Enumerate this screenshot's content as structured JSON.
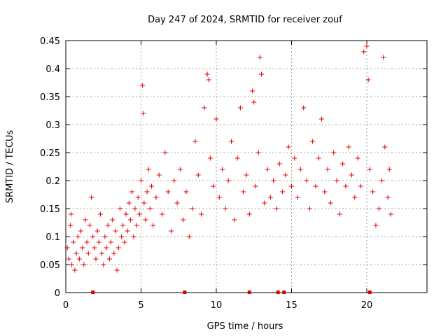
{
  "chart_data": {
    "type": "scatter",
    "title": "Day 247 of 2024, SRMTID for receiver zouf",
    "xlabel": "GPS time / hours",
    "ylabel": "SRMTID / TECUs",
    "xlim": [
      0,
      24
    ],
    "ylim": [
      0,
      0.45
    ],
    "x_ticks": [
      "0",
      "5",
      "10",
      "15",
      "20"
    ],
    "x_tick_values": [
      0,
      5,
      10,
      15,
      20
    ],
    "y_ticks": [
      "0",
      "0.05",
      "0.1",
      "0.15",
      "0.2",
      "0.25",
      "0.3",
      "0.35",
      "0.4",
      "0.45"
    ],
    "y_tick_values": [
      0,
      0.05,
      0.1,
      0.15,
      0.2,
      0.25,
      0.3,
      0.35,
      0.4,
      0.45
    ],
    "grid": true,
    "marker": "+",
    "color": "#e00000",
    "zero_markers_x": [
      1.8,
      7.9,
      12.2,
      14.1,
      14.5,
      20.2
    ],
    "points": [
      [
        0.1,
        0.08
      ],
      [
        0.2,
        0.06
      ],
      [
        0.3,
        0.12
      ],
      [
        0.35,
        0.14
      ],
      [
        0.4,
        0.05
      ],
      [
        0.5,
        0.09
      ],
      [
        0.6,
        0.04
      ],
      [
        0.7,
        0.07
      ],
      [
        0.8,
        0.1
      ],
      [
        0.9,
        0.06
      ],
      [
        1.0,
        0.11
      ],
      [
        1.1,
        0.08
      ],
      [
        1.2,
        0.05
      ],
      [
        1.3,
        0.13
      ],
      [
        1.4,
        0.09
      ],
      [
        1.5,
        0.07
      ],
      [
        1.6,
        0.12
      ],
      [
        1.7,
        0.17
      ],
      [
        1.8,
        0.1
      ],
      [
        1.9,
        0.08
      ],
      [
        2.0,
        0.06
      ],
      [
        2.1,
        0.11
      ],
      [
        2.2,
        0.09
      ],
      [
        2.3,
        0.14
      ],
      [
        2.4,
        0.07
      ],
      [
        2.5,
        0.05
      ],
      [
        2.6,
        0.1
      ],
      [
        2.7,
        0.08
      ],
      [
        2.8,
        0.12
      ],
      [
        2.9,
        0.06
      ],
      [
        3.0,
        0.09
      ],
      [
        3.1,
        0.13
      ],
      [
        3.2,
        0.07
      ],
      [
        3.3,
        0.11
      ],
      [
        3.4,
        0.04
      ],
      [
        3.5,
        0.08
      ],
      [
        3.6,
        0.15
      ],
      [
        3.7,
        0.1
      ],
      [
        3.8,
        0.12
      ],
      [
        3.9,
        0.09
      ],
      [
        4.0,
        0.14
      ],
      [
        4.1,
        0.11
      ],
      [
        4.2,
        0.16
      ],
      [
        4.3,
        0.13
      ],
      [
        4.4,
        0.18
      ],
      [
        4.5,
        0.1
      ],
      [
        4.6,
        0.15
      ],
      [
        4.7,
        0.12
      ],
      [
        4.8,
        0.17
      ],
      [
        4.9,
        0.14
      ],
      [
        5.0,
        0.2
      ],
      [
        5.1,
        0.37
      ],
      [
        5.15,
        0.32
      ],
      [
        5.2,
        0.16
      ],
      [
        5.3,
        0.13
      ],
      [
        5.4,
        0.18
      ],
      [
        5.5,
        0.22
      ],
      [
        5.6,
        0.15
      ],
      [
        5.7,
        0.19
      ],
      [
        5.8,
        0.12
      ],
      [
        6.0,
        0.17
      ],
      [
        6.2,
        0.21
      ],
      [
        6.4,
        0.14
      ],
      [
        6.6,
        0.25
      ],
      [
        6.8,
        0.18
      ],
      [
        7.0,
        0.11
      ],
      [
        7.2,
        0.2
      ],
      [
        7.4,
        0.16
      ],
      [
        7.6,
        0.22
      ],
      [
        7.8,
        0.13
      ],
      [
        8.0,
        0.18
      ],
      [
        8.2,
        0.1
      ],
      [
        8.4,
        0.15
      ],
      [
        8.6,
        0.27
      ],
      [
        8.8,
        0.21
      ],
      [
        9.0,
        0.14
      ],
      [
        9.2,
        0.33
      ],
      [
        9.4,
        0.39
      ],
      [
        9.5,
        0.38
      ],
      [
        9.6,
        0.24
      ],
      [
        9.8,
        0.19
      ],
      [
        10.0,
        0.31
      ],
      [
        10.2,
        0.17
      ],
      [
        10.4,
        0.22
      ],
      [
        10.6,
        0.15
      ],
      [
        10.8,
        0.2
      ],
      [
        11.0,
        0.27
      ],
      [
        11.2,
        0.13
      ],
      [
        11.4,
        0.24
      ],
      [
        11.6,
        0.33
      ],
      [
        11.8,
        0.18
      ],
      [
        12.0,
        0.21
      ],
      [
        12.2,
        0.14
      ],
      [
        12.4,
        0.36
      ],
      [
        12.5,
        0.34
      ],
      [
        12.6,
        0.19
      ],
      [
        12.8,
        0.25
      ],
      [
        12.9,
        0.42
      ],
      [
        13.0,
        0.39
      ],
      [
        13.2,
        0.16
      ],
      [
        13.4,
        0.22
      ],
      [
        13.6,
        0.17
      ],
      [
        13.8,
        0.2
      ],
      [
        14.0,
        0.15
      ],
      [
        14.2,
        0.23
      ],
      [
        14.4,
        0.18
      ],
      [
        14.6,
        0.21
      ],
      [
        14.8,
        0.26
      ],
      [
        15.0,
        0.19
      ],
      [
        15.2,
        0.24
      ],
      [
        15.4,
        0.17
      ],
      [
        15.6,
        0.22
      ],
      [
        15.8,
        0.33
      ],
      [
        16.0,
        0.2
      ],
      [
        16.2,
        0.15
      ],
      [
        16.4,
        0.27
      ],
      [
        16.6,
        0.19
      ],
      [
        16.8,
        0.24
      ],
      [
        17.0,
        0.31
      ],
      [
        17.2,
        0.18
      ],
      [
        17.4,
        0.22
      ],
      [
        17.6,
        0.16
      ],
      [
        17.8,
        0.25
      ],
      [
        18.0,
        0.2
      ],
      [
        18.2,
        0.14
      ],
      [
        18.4,
        0.23
      ],
      [
        18.6,
        0.19
      ],
      [
        18.8,
        0.26
      ],
      [
        19.0,
        0.21
      ],
      [
        19.2,
        0.17
      ],
      [
        19.4,
        0.24
      ],
      [
        19.6,
        0.19
      ],
      [
        19.8,
        0.43
      ],
      [
        20.0,
        0.44
      ],
      [
        20.1,
        0.38
      ],
      [
        20.2,
        0.22
      ],
      [
        20.4,
        0.18
      ],
      [
        20.6,
        0.12
      ],
      [
        20.8,
        0.15
      ],
      [
        21.0,
        0.2
      ],
      [
        21.1,
        0.42
      ],
      [
        21.2,
        0.26
      ],
      [
        21.4,
        0.17
      ],
      [
        21.5,
        0.22
      ],
      [
        21.6,
        0.14
      ]
    ]
  }
}
